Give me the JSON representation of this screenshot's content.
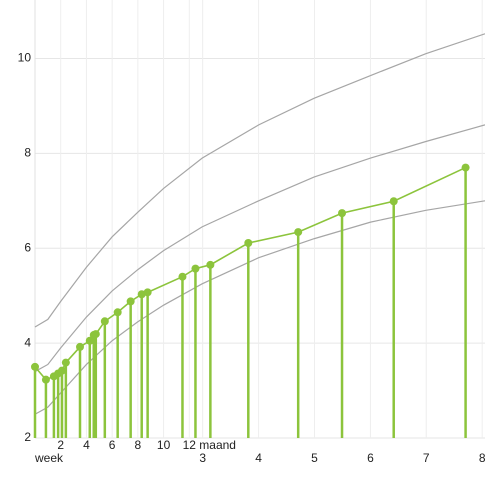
{
  "chart_data": {
    "type": "line",
    "xlabel": "week",
    "x2label": "maand",
    "xlim": [
      0,
      35
    ],
    "ylim": [
      2,
      10.6
    ],
    "yticks": [
      2,
      4,
      6,
      8,
      10
    ],
    "xticks": [
      2,
      4,
      6,
      8,
      10,
      12
    ],
    "x2ticks": [
      {
        "value": 13.04,
        "label": "3"
      },
      {
        "value": 17.39,
        "label": "4"
      },
      {
        "value": 21.74,
        "label": "5"
      },
      {
        "value": 26.09,
        "label": "6"
      },
      {
        "value": 30.43,
        "label": "7"
      },
      {
        "value": 34.78,
        "label": "8"
      }
    ],
    "grid": true,
    "series": [
      {
        "color": "#a6a6a6",
        "style": "line",
        "x": [
          0,
          1,
          2,
          4,
          6,
          8,
          10,
          13,
          17.4,
          21.7,
          26.1,
          30.4,
          35
        ],
        "values": [
          4.34,
          4.5,
          4.88,
          5.6,
          6.24,
          6.76,
          7.26,
          7.9,
          8.6,
          9.16,
          9.64,
          10.1,
          10.52
        ]
      },
      {
        "color": "#a6a6a6",
        "style": "line",
        "x": [
          0,
          1,
          2,
          4,
          6,
          8,
          10,
          13,
          17.4,
          21.7,
          26.1,
          30.4,
          35
        ],
        "values": [
          3.4,
          3.55,
          3.9,
          4.55,
          5.1,
          5.55,
          5.95,
          6.45,
          7.0,
          7.5,
          7.9,
          8.25,
          8.6
        ]
      },
      {
        "color": "#a6a6a6",
        "style": "line",
        "x": [
          0,
          1,
          2,
          4,
          6,
          8,
          10,
          13,
          17.4,
          21.7,
          26.1,
          30.4,
          35
        ],
        "values": [
          2.5,
          2.65,
          2.95,
          3.55,
          4.05,
          4.45,
          4.8,
          5.25,
          5.8,
          6.2,
          6.55,
          6.8,
          7.0
        ]
      },
      {
        "color": "#8cc43c",
        "style": "stem",
        "x": [
          0,
          0.85,
          1.47,
          1.8,
          2.1,
          2.4,
          3.5,
          4.26,
          4.57,
          4.73,
          5.43,
          6.43,
          7.44,
          8.3,
          8.76,
          11.47,
          12.48,
          13.64,
          16.59,
          20.47,
          23.88,
          27.9,
          33.49
        ],
        "values": [
          3.5,
          3.23,
          3.3,
          3.36,
          3.42,
          3.59,
          3.92,
          4.05,
          4.17,
          4.19,
          4.46,
          4.65,
          4.88,
          5.03,
          5.07,
          5.4,
          5.57,
          5.65,
          6.11,
          6.34,
          6.74,
          6.99,
          7.7
        ]
      }
    ]
  }
}
